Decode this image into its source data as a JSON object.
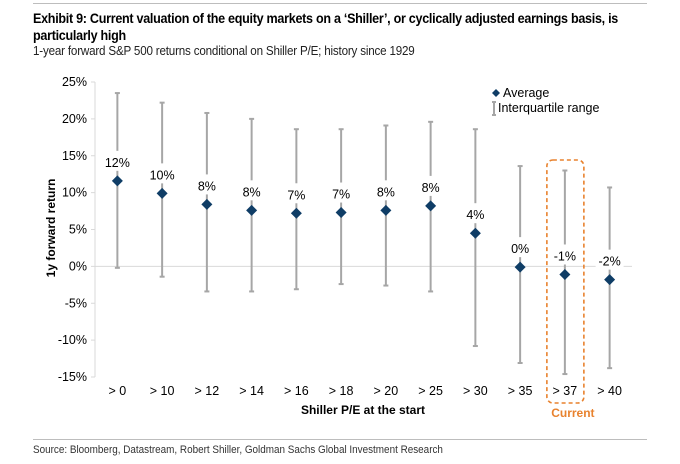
{
  "header": {
    "title": "Exhibit 9: Current valuation of the equity markets on a ‘Shiller’, or cyclically adjusted earnings basis, is particularly high",
    "subtitle": "1-year forward S&P 500 returns conditional on Shiller P/E; history since 1929"
  },
  "footer": {
    "source": "Source: Bloomberg, Datastream, Robert Shiller, Goldman Sachs Global Investment Research"
  },
  "colors": {
    "marker": "#0f3d66",
    "whisker": "#a6a6a6",
    "gridline": "#d9d9d9",
    "highlight": "#e8822e"
  },
  "chart_data": {
    "type": "scatter",
    "subtype": "range-with-average",
    "title": "1-year forward S&P 500 returns conditional on Shiller P/E; history since 1929",
    "xlabel": "Shiller P/E at the start",
    "ylabel": "1y forward return",
    "ylim": [
      -15,
      25
    ],
    "y_ticks": [
      25,
      20,
      15,
      10,
      5,
      0,
      -5,
      -10,
      -15
    ],
    "y_tick_labels": [
      "25%",
      "20%",
      "15%",
      "10%",
      "5%",
      "0%",
      "-5%",
      "-10%",
      "-15%"
    ],
    "grid": "zero-line only",
    "legend": {
      "placement": "top-right",
      "entries": [
        "Average",
        "Interquartile range"
      ]
    },
    "categories": [
      "> 0",
      "> 10",
      "> 12",
      "> 14",
      "> 16",
      "> 18",
      "> 20",
      "> 25",
      "> 30",
      "> 35",
      "> 37",
      "> 40"
    ],
    "series": [
      {
        "name": "Average",
        "values": [
          11.6,
          9.9,
          8.4,
          7.6,
          7.2,
          7.3,
          7.6,
          8.2,
          4.5,
          -0.1,
          -1.1,
          -1.8
        ],
        "data_labels": [
          "12%",
          "10%",
          "8%",
          "8%",
          "7%",
          "7%",
          "8%",
          "8%",
          "4%",
          "0%",
          "-1%",
          "-2%"
        ]
      },
      {
        "name": "Interquartile range (upper)",
        "values": [
          23.5,
          22.2,
          20.8,
          20.0,
          18.6,
          18.6,
          19.1,
          19.6,
          18.6,
          13.6,
          13.0,
          10.7
        ]
      },
      {
        "name": "Interquartile range (lower)",
        "values": [
          -0.2,
          -1.4,
          -3.4,
          -3.4,
          -3.1,
          -2.4,
          -2.6,
          -3.4,
          -10.8,
          -13.1,
          -14.6,
          -13.8
        ]
      }
    ],
    "annotations": [
      {
        "category": "> 37",
        "text": "Current",
        "style": "dashed orange box"
      }
    ]
  }
}
